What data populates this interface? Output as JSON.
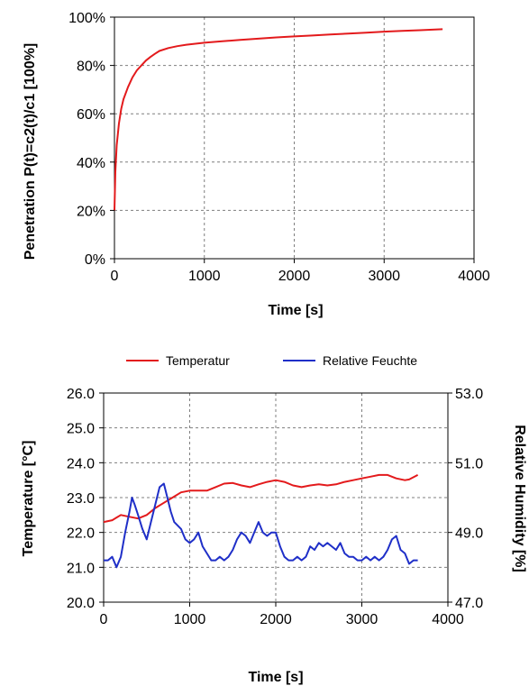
{
  "chart_data": [
    {
      "type": "line",
      "xlabel": "Time [s]",
      "ylabel": "Penetration P(t)=c2(t)/c1 [100%]",
      "xlim": [
        0,
        4000
      ],
      "ylim": [
        0,
        100
      ],
      "x_ticks": [
        "0",
        "1000",
        "2000",
        "3000",
        "4000"
      ],
      "y_ticks": [
        "0%",
        "20%",
        "40%",
        "60%",
        "80%",
        "100%"
      ],
      "grid": true,
      "series": [
        {
          "color": "#e31a1c",
          "x": [
            0,
            10,
            25,
            50,
            75,
            100,
            150,
            200,
            250,
            300,
            350,
            400,
            450,
            500,
            600,
            700,
            800,
            900,
            1000,
            1200,
            1400,
            1600,
            1800,
            2000,
            2200,
            2400,
            2600,
            2800,
            3000,
            3200,
            3400,
            3650
          ],
          "y": [
            20,
            36,
            47,
            56,
            62,
            66,
            71,
            75,
            78,
            80,
            82,
            83.5,
            84.8,
            86,
            87.2,
            88,
            88.6,
            89,
            89.4,
            90,
            90.6,
            91.1,
            91.6,
            92,
            92.4,
            92.8,
            93.2,
            93.6,
            94,
            94.3,
            94.6,
            95
          ]
        }
      ]
    },
    {
      "type": "line",
      "xlabel": "Time [s]",
      "ylabel": "Temperature [°C]",
      "y2label": "Relative Humidity [%]",
      "xlim": [
        0,
        4000
      ],
      "ylim": [
        20,
        26
      ],
      "y2lim": [
        47,
        53
      ],
      "x_ticks": [
        "0",
        "1000",
        "2000",
        "3000",
        "4000"
      ],
      "y_ticks": [
        "20.0",
        "21.0",
        "22.0",
        "23.0",
        "24.0",
        "25.0",
        "26.0"
      ],
      "y2_ticks": [
        "47.0",
        "49.0",
        "51.0",
        "53.0"
      ],
      "grid": true,
      "legend": "top",
      "series": [
        {
          "name": "Temperatur",
          "axis": "left",
          "color": "#e31a1c",
          "x": [
            0,
            100,
            200,
            300,
            400,
            500,
            600,
            700,
            800,
            900,
            1000,
            1100,
            1200,
            1300,
            1400,
            1500,
            1600,
            1700,
            1800,
            1900,
            2000,
            2100,
            2200,
            2300,
            2400,
            2500,
            2600,
            2700,
            2800,
            2900,
            3000,
            3100,
            3200,
            3300,
            3400,
            3500,
            3550,
            3650
          ],
          "y": [
            22.3,
            22.35,
            22.5,
            22.45,
            22.4,
            22.5,
            22.7,
            22.85,
            23.0,
            23.15,
            23.2,
            23.2,
            23.2,
            23.3,
            23.4,
            23.42,
            23.35,
            23.3,
            23.38,
            23.45,
            23.5,
            23.45,
            23.35,
            23.3,
            23.35,
            23.38,
            23.35,
            23.38,
            23.45,
            23.5,
            23.55,
            23.6,
            23.65,
            23.65,
            23.55,
            23.5,
            23.52,
            23.65
          ]
        },
        {
          "name": "Relative Feuchte",
          "axis": "right",
          "color": "#1f2fc8",
          "x": [
            0,
            50,
            100,
            150,
            200,
            250,
            300,
            330,
            360,
            400,
            450,
            500,
            550,
            600,
            650,
            700,
            740,
            780,
            820,
            860,
            900,
            950,
            1000,
            1050,
            1100,
            1150,
            1200,
            1250,
            1300,
            1350,
            1400,
            1450,
            1500,
            1550,
            1600,
            1650,
            1700,
            1750,
            1800,
            1850,
            1900,
            1950,
            2000,
            2050,
            2100,
            2150,
            2200,
            2250,
            2300,
            2350,
            2400,
            2450,
            2500,
            2550,
            2600,
            2650,
            2700,
            2750,
            2800,
            2850,
            2900,
            2950,
            3000,
            3050,
            3100,
            3150,
            3200,
            3250,
            3300,
            3350,
            3400,
            3450,
            3500,
            3550,
            3600,
            3650
          ],
          "y": [
            48.2,
            48.2,
            48.3,
            48.0,
            48.3,
            49.0,
            49.6,
            50.0,
            49.8,
            49.5,
            49.1,
            48.8,
            49.3,
            49.8,
            50.3,
            50.4,
            50.0,
            49.6,
            49.3,
            49.2,
            49.1,
            48.8,
            48.7,
            48.8,
            49.0,
            48.6,
            48.4,
            48.2,
            48.2,
            48.3,
            48.2,
            48.3,
            48.5,
            48.8,
            49.0,
            48.9,
            48.7,
            49.0,
            49.3,
            49.0,
            48.9,
            49.0,
            49.0,
            48.6,
            48.3,
            48.2,
            48.2,
            48.3,
            48.2,
            48.3,
            48.6,
            48.5,
            48.7,
            48.6,
            48.7,
            48.6,
            48.5,
            48.7,
            48.4,
            48.3,
            48.3,
            48.2,
            48.2,
            48.3,
            48.2,
            48.3,
            48.2,
            48.3,
            48.5,
            48.8,
            48.9,
            48.5,
            48.4,
            48.1,
            48.2,
            48.2
          ]
        }
      ]
    }
  ]
}
